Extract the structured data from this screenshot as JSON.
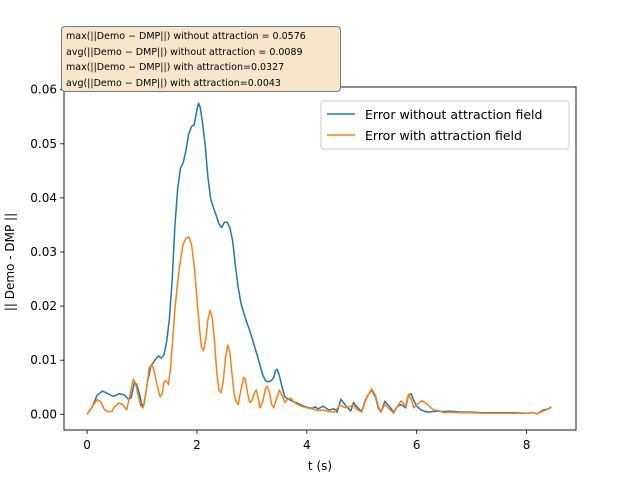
{
  "annotation": {
    "lines": [
      "max(||Demo − DMP||) without attraction = 0.0576",
      "avg(||Demo − DMP||) without attraction = 0.0089",
      "max(||Demo − DMP||) with attraction=0.0327",
      "avg(||Demo − DMP||) with attraction=0.0043"
    ]
  },
  "chart_data": {
    "type": "line",
    "xlabel": "t (s)",
    "ylabel": "|| Demo - DMP ||",
    "xlim": [
      -0.42,
      8.9
    ],
    "ylim": [
      -0.0029,
      0.0605
    ],
    "xticks": [
      0,
      2,
      4,
      6,
      8
    ],
    "yticks": [
      0.0,
      0.01,
      0.02,
      0.03,
      0.04,
      0.05,
      0.06
    ],
    "ytick_labels": [
      "0.00",
      "0.01",
      "0.02",
      "0.03",
      "0.04",
      "0.05",
      "0.06"
    ],
    "grid": false,
    "legend_position": "top-right",
    "series": [
      {
        "name": "Error without attraction field",
        "color": "#1f77b4",
        "points": [
          [
            0,
            0
          ],
          [
            0.1,
            0.0015
          ],
          [
            0.18,
            0.0035
          ],
          [
            0.28,
            0.0043
          ],
          [
            0.38,
            0.0038
          ],
          [
            0.48,
            0.0033
          ],
          [
            0.58,
            0.0038
          ],
          [
            0.68,
            0.0036
          ],
          [
            0.75,
            0.0028
          ],
          [
            0.8,
            0.003
          ],
          [
            0.86,
            0.0058
          ],
          [
            0.9,
            0.0056
          ],
          [
            0.96,
            0.0035
          ],
          [
            1.0,
            0.0015
          ],
          [
            1.04,
            0.002
          ],
          [
            1.1,
            0.006
          ],
          [
            1.16,
            0.0088
          ],
          [
            1.22,
            0.0098
          ],
          [
            1.3,
            0.0108
          ],
          [
            1.35,
            0.0104
          ],
          [
            1.4,
            0.011
          ],
          [
            1.45,
            0.0135
          ],
          [
            1.5,
            0.0178
          ],
          [
            1.55,
            0.025
          ],
          [
            1.6,
            0.035
          ],
          [
            1.65,
            0.0418
          ],
          [
            1.7,
            0.0455
          ],
          [
            1.75,
            0.0465
          ],
          [
            1.8,
            0.0488
          ],
          [
            1.85,
            0.0518
          ],
          [
            1.9,
            0.0532
          ],
          [
            1.95,
            0.0535
          ],
          [
            2.0,
            0.0563
          ],
          [
            2.03,
            0.0575
          ],
          [
            2.06,
            0.0567
          ],
          [
            2.1,
            0.054
          ],
          [
            2.15,
            0.0498
          ],
          [
            2.2,
            0.0438
          ],
          [
            2.25,
            0.0398
          ],
          [
            2.3,
            0.0382
          ],
          [
            2.35,
            0.0368
          ],
          [
            2.4,
            0.0352
          ],
          [
            2.45,
            0.0345
          ],
          [
            2.5,
            0.0355
          ],
          [
            2.55,
            0.0355
          ],
          [
            2.6,
            0.0345
          ],
          [
            2.65,
            0.032
          ],
          [
            2.7,
            0.0275
          ],
          [
            2.75,
            0.0235
          ],
          [
            2.8,
            0.0206
          ],
          [
            2.85,
            0.0188
          ],
          [
            2.9,
            0.0172
          ],
          [
            2.95,
            0.0158
          ],
          [
            3.0,
            0.0142
          ],
          [
            3.05,
            0.0125
          ],
          [
            3.1,
            0.0108
          ],
          [
            3.15,
            0.009
          ],
          [
            3.2,
            0.0072
          ],
          [
            3.25,
            0.0062
          ],
          [
            3.3,
            0.006
          ],
          [
            3.35,
            0.0062
          ],
          [
            3.4,
            0.0068
          ],
          [
            3.43,
            0.0081
          ],
          [
            3.46,
            0.0083
          ],
          [
            3.5,
            0.0072
          ],
          [
            3.55,
            0.005
          ],
          [
            3.6,
            0.0032
          ],
          [
            3.7,
            0.0026
          ],
          [
            3.8,
            0.0022
          ],
          [
            3.9,
            0.0017
          ],
          [
            4.0,
            0.0013
          ],
          [
            4.1,
            0.0011
          ],
          [
            4.15,
            0.0014
          ],
          [
            4.2,
            0.001
          ],
          [
            4.3,
            0.0015
          ],
          [
            4.4,
            0.0008
          ],
          [
            4.5,
            0.001
          ],
          [
            4.55,
            0.0004
          ],
          [
            4.62,
            0.0028
          ],
          [
            4.7,
            0.0017
          ],
          [
            4.8,
            0.0006
          ],
          [
            4.85,
            0.0022
          ],
          [
            4.9,
            0.0015
          ],
          [
            5.0,
            0.0005
          ],
          [
            5.05,
            0.0022
          ],
          [
            5.1,
            0.0033
          ],
          [
            5.18,
            0.0045
          ],
          [
            5.25,
            0.0032
          ],
          [
            5.3,
            0.0012
          ],
          [
            5.35,
            0.0004
          ],
          [
            5.42,
            0.0024
          ],
          [
            5.5,
            0.0015
          ],
          [
            5.58,
            0.0004
          ],
          [
            5.65,
            0.0015
          ],
          [
            5.72,
            0.0018
          ],
          [
            5.8,
            0.0012
          ],
          [
            5.85,
            0.0035
          ],
          [
            5.9,
            0.0038
          ],
          [
            5.95,
            0.0025
          ],
          [
            6.0,
            0.0015
          ],
          [
            6.08,
            0.0008
          ],
          [
            6.2,
            0.0004
          ],
          [
            6.4,
            0.0006
          ],
          [
            6.5,
            0.0005
          ],
          [
            6.6,
            0.0006
          ],
          [
            6.8,
            0.0004
          ],
          [
            7.0,
            0.0004
          ],
          [
            7.2,
            0.0003
          ],
          [
            7.5,
            0.0003
          ],
          [
            7.8,
            0.0003
          ],
          [
            8.0,
            0.0002
          ],
          [
            8.1,
            0.0003
          ],
          [
            8.2,
            0.0001
          ],
          [
            8.3,
            0.0008
          ],
          [
            8.4,
            0.001
          ],
          [
            8.45,
            0.0014
          ]
        ]
      },
      {
        "name": "Error with attraction field",
        "color": "#ff7f0e",
        "points": [
          [
            0,
            0
          ],
          [
            0.1,
            0.0015
          ],
          [
            0.18,
            0.0027
          ],
          [
            0.25,
            0.0023
          ],
          [
            0.32,
            0.0008
          ],
          [
            0.38,
            0.0005
          ],
          [
            0.45,
            0.0005
          ],
          [
            0.5,
            0.0014
          ],
          [
            0.58,
            0.0021
          ],
          [
            0.65,
            0.0018
          ],
          [
            0.72,
            0.0008
          ],
          [
            0.78,
            0.0035
          ],
          [
            0.84,
            0.0065
          ],
          [
            0.88,
            0.0058
          ],
          [
            0.93,
            0.0035
          ],
          [
            0.98,
            0.0015
          ],
          [
            1.02,
            0.0012
          ],
          [
            1.08,
            0.0045
          ],
          [
            1.13,
            0.0085
          ],
          [
            1.18,
            0.0093
          ],
          [
            1.22,
            0.008
          ],
          [
            1.28,
            0.0052
          ],
          [
            1.33,
            0.0032
          ],
          [
            1.37,
            0.0038
          ],
          [
            1.4,
            0.006
          ],
          [
            1.44,
            0.0062
          ],
          [
            1.48,
            0.0055
          ],
          [
            1.52,
            0.0085
          ],
          [
            1.56,
            0.014
          ],
          [
            1.6,
            0.0195
          ],
          [
            1.65,
            0.0245
          ],
          [
            1.7,
            0.0285
          ],
          [
            1.75,
            0.0315
          ],
          [
            1.8,
            0.0325
          ],
          [
            1.85,
            0.0328
          ],
          [
            1.9,
            0.0315
          ],
          [
            1.95,
            0.0275
          ],
          [
            2.0,
            0.0215
          ],
          [
            2.05,
            0.0155
          ],
          [
            2.08,
            0.0125
          ],
          [
            2.12,
            0.0118
          ],
          [
            2.16,
            0.0138
          ],
          [
            2.2,
            0.0175
          ],
          [
            2.24,
            0.0192
          ],
          [
            2.28,
            0.0178
          ],
          [
            2.32,
            0.0135
          ],
          [
            2.36,
            0.0078
          ],
          [
            2.4,
            0.0045
          ],
          [
            2.44,
            0.004
          ],
          [
            2.48,
            0.0062
          ],
          [
            2.52,
            0.0105
          ],
          [
            2.56,
            0.0128
          ],
          [
            2.6,
            0.0115
          ],
          [
            2.64,
            0.0072
          ],
          [
            2.68,
            0.0035
          ],
          [
            2.72,
            0.0022
          ],
          [
            2.75,
            0.0018
          ],
          [
            2.8,
            0.0045
          ],
          [
            2.85,
            0.0068
          ],
          [
            2.88,
            0.0065
          ],
          [
            2.92,
            0.004
          ],
          [
            2.96,
            0.0022
          ],
          [
            3.0,
            0.0025
          ],
          [
            3.05,
            0.004
          ],
          [
            3.08,
            0.0045
          ],
          [
            3.12,
            0.0028
          ],
          [
            3.15,
            0.0012
          ],
          [
            3.2,
            0.0025
          ],
          [
            3.25,
            0.0048
          ],
          [
            3.28,
            0.0052
          ],
          [
            3.32,
            0.004
          ],
          [
            3.36,
            0.0018
          ],
          [
            3.4,
            0.0012
          ],
          [
            3.45,
            0.003
          ],
          [
            3.5,
            0.0045
          ],
          [
            3.55,
            0.0035
          ],
          [
            3.6,
            0.0022
          ],
          [
            3.65,
            0.0028
          ],
          [
            3.7,
            0.003
          ],
          [
            3.8,
            0.002
          ],
          [
            3.9,
            0.0015
          ],
          [
            4.0,
            0.0012
          ],
          [
            4.1,
            0.001
          ],
          [
            4.2,
            0.0007
          ],
          [
            4.3,
            0.0008
          ],
          [
            4.4,
            0.0005
          ],
          [
            4.5,
            0.0004
          ],
          [
            4.6,
            0.0017
          ],
          [
            4.7,
            0.0012
          ],
          [
            4.8,
            0.0015
          ],
          [
            4.85,
            0.0018
          ],
          [
            4.9,
            0.001
          ],
          [
            5.0,
            0.0004
          ],
          [
            5.05,
            0.002
          ],
          [
            5.1,
            0.0032
          ],
          [
            5.18,
            0.0047
          ],
          [
            5.25,
            0.0035
          ],
          [
            5.3,
            0.0015
          ],
          [
            5.35,
            0.0005
          ],
          [
            5.42,
            0.0018
          ],
          [
            5.5,
            0.001
          ],
          [
            5.58,
            0.0002
          ],
          [
            5.65,
            0.0015
          ],
          [
            5.72,
            0.0025
          ],
          [
            5.8,
            0.0015
          ],
          [
            5.85,
            0.0037
          ],
          [
            5.9,
            0.0028
          ],
          [
            5.95,
            0.0012
          ],
          [
            6.0,
            0.0018
          ],
          [
            6.1,
            0.0025
          ],
          [
            6.2,
            0.0018
          ],
          [
            6.3,
            0.0008
          ],
          [
            6.4,
            0.0007
          ],
          [
            6.5,
            0.0003
          ],
          [
            6.6,
            0.0004
          ],
          [
            6.8,
            0.0003
          ],
          [
            7.0,
            0.0003
          ],
          [
            7.2,
            0.0002
          ],
          [
            7.5,
            0.0002
          ],
          [
            7.8,
            0.0002
          ],
          [
            8.0,
            0.0002
          ],
          [
            8.1,
            0.0003
          ],
          [
            8.2,
            0.0001
          ],
          [
            8.3,
            0.0006
          ],
          [
            8.4,
            0.001
          ],
          [
            8.45,
            0.0013
          ]
        ]
      }
    ]
  }
}
